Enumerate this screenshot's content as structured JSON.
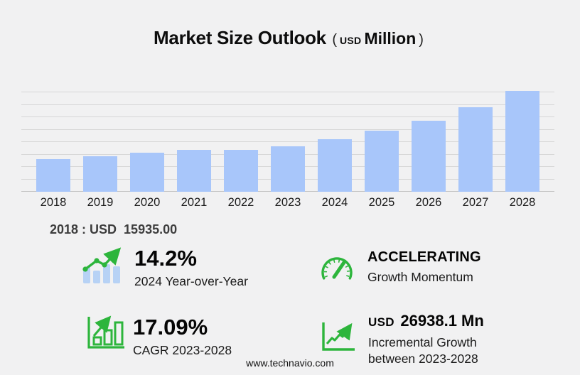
{
  "title": {
    "main": "Market Size Outlook",
    "open": "(",
    "currency": "USD",
    "unit": "Million",
    "close": ")"
  },
  "chart_data": {
    "type": "bar",
    "title": "Market Size Outlook (USD Million)",
    "unit": "USD Million",
    "categories": [
      "2018",
      "2019",
      "2020",
      "2021",
      "2022",
      "2023",
      "2024",
      "2025",
      "2026",
      "2027",
      "2028"
    ],
    "values": [
      15935,
      17400,
      19100,
      20500,
      20450,
      22430,
      25615,
      29800,
      34900,
      41500,
      49370
    ],
    "xlabel": "",
    "ylabel": "",
    "ylim": [
      0,
      50000
    ],
    "gridline_count": 9,
    "grid": "horizontal",
    "legend": "none",
    "bar_color": "#a8c6fa"
  },
  "annotation_2018": "2018 : USD  15935.00",
  "stats": {
    "yoy": {
      "value": "14.2%",
      "label": "2024 Year-over-Year"
    },
    "momentum": {
      "value": "ACCELERATING",
      "label": "Growth Momentum"
    },
    "cagr": {
      "value": "17.09%",
      "label": "CAGR 2023-2028"
    },
    "incremental": {
      "currency": "USD",
      "amount": "26938.1 Mn",
      "label_line1": "Incremental Growth",
      "label_line2": "between 2023-2028"
    }
  },
  "footer": {
    "website": "www.technavio.com"
  },
  "colors": {
    "background": "#f1f1f2",
    "bar": "#a8c6fa",
    "icon_bar_blue": "#b7d2f5",
    "green": "#2db53c",
    "grid": "#d7d7d7",
    "text": "#111111"
  }
}
